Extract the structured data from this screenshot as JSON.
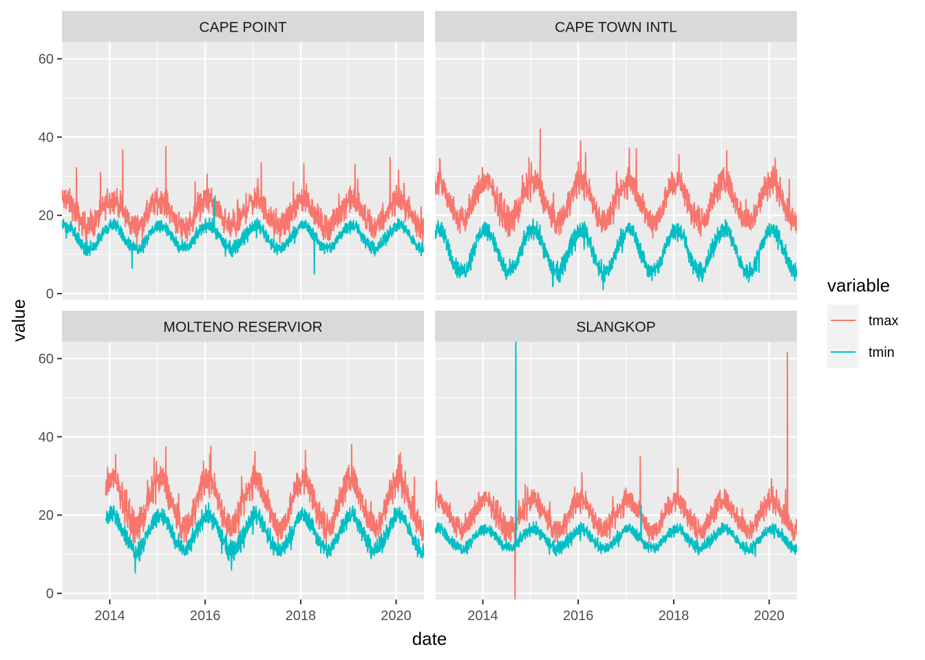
{
  "chart_data": {
    "type": "line",
    "facet_type": "wrap",
    "xlabel": "date",
    "ylabel": "value",
    "x_range": [
      "2012-12-31",
      "2020-08-01"
    ],
    "x_ticks": [
      "2014",
      "2016",
      "2018",
      "2020"
    ],
    "ylim": [
      0,
      64
    ],
    "y_ticks": [
      0,
      20,
      40,
      60
    ],
    "grid": true,
    "legend": {
      "title": "variable",
      "position": "right",
      "entries": [
        {
          "name": "tmax",
          "color": "#F8766D"
        },
        {
          "name": "tmin",
          "color": "#00BFC4"
        }
      ]
    },
    "panels": [
      {
        "title": "CAPE POINT",
        "date_range": [
          "2013-01-01",
          "2020-07-31"
        ],
        "series": [
          {
            "name": "tmax",
            "mean": 20.5,
            "seasonal_amplitude": 3.5,
            "noise": 2.8,
            "base": 0,
            "spikes": [
              {
                "date": "2014-04-10",
                "value": 36.8
              },
              {
                "date": "2015-03-05",
                "value": 37.6
              },
              {
                "date": "2013-04-20",
                "value": 32.2
              },
              {
                "date": "2017-03-05",
                "value": 33.5
              },
              {
                "date": "2018-01-25",
                "value": 33.2
              },
              {
                "date": "2019-02-20",
                "value": 33.0
              },
              {
                "date": "2019-11-15",
                "value": 34.8
              },
              {
                "date": "2016-01-15",
                "value": 30.5
              }
            ]
          },
          {
            "name": "tmin",
            "mean": 14.5,
            "seasonal_amplitude": 3.0,
            "noise": 1.4,
            "base": 0,
            "spikes": [
              {
                "date": "2016-03-10",
                "value": 24.5
              },
              {
                "date": "2018-04-15",
                "value": 5.0
              },
              {
                "date": "2014-06-20",
                "value": 6.5
              }
            ]
          }
        ]
      },
      {
        "title": "CAPE TOWN INTL",
        "date_range": [
          "2013-01-01",
          "2020-07-31"
        ],
        "series": [
          {
            "name": "tmax",
            "mean": 23.5,
            "seasonal_amplitude": 5.0,
            "noise": 3.0,
            "base": 0,
            "spikes": [
              {
                "date": "2015-03-15",
                "value": 42.0
              },
              {
                "date": "2016-01-20",
                "value": 39.0
              },
              {
                "date": "2017-01-25",
                "value": 37.2
              },
              {
                "date": "2017-03-20",
                "value": 37.0
              },
              {
                "date": "2013-02-05",
                "value": 34.5
              },
              {
                "date": "2018-02-10",
                "value": 35.5
              },
              {
                "date": "2019-02-10",
                "value": 36.5
              },
              {
                "date": "2020-02-01",
                "value": 32.5
              }
            ]
          },
          {
            "name": "tmin",
            "mean": 11.0,
            "seasonal_amplitude": 5.5,
            "noise": 2.0,
            "base": 0,
            "spikes": [
              {
                "date": "2016-07-10",
                "value": 1.0
              },
              {
                "date": "2015-06-20",
                "value": 1.8
              }
            ]
          }
        ]
      },
      {
        "title": "MOLTENO RESERVIOR",
        "date_range": [
          "2013-12-01",
          "2020-07-31"
        ],
        "series": [
          {
            "name": "tmax",
            "mean": 23.0,
            "seasonal_amplitude": 6.0,
            "noise": 3.2,
            "base": 0,
            "spikes": [
              {
                "date": "2019-01-25",
                "value": 38.0
              },
              {
                "date": "2015-03-05",
                "value": 37.5
              },
              {
                "date": "2017-01-15",
                "value": 36.2
              },
              {
                "date": "2016-02-05",
                "value": 35.5
              },
              {
                "date": "2014-02-15",
                "value": 35.5
              },
              {
                "date": "2018-02-05",
                "value": 36.5
              },
              {
                "date": "2020-01-20",
                "value": 35.2
              }
            ]
          },
          {
            "name": "tmin",
            "mean": 15.5,
            "seasonal_amplitude": 4.5,
            "noise": 2.0,
            "base": 0,
            "spikes": [
              {
                "date": "2014-07-15",
                "value": 5.2
              },
              {
                "date": "2016-07-20",
                "value": 6.0
              }
            ]
          }
        ]
      },
      {
        "title": "SLANGKOP",
        "date_range": [
          "2013-01-01",
          "2020-07-31"
        ],
        "series": [
          {
            "name": "tmax",
            "mean": 20.0,
            "seasonal_amplitude": 3.8,
            "noise": 2.5,
            "base": 0,
            "spikes": [
              {
                "date": "2014-09-05",
                "value": -3.0
              },
              {
                "date": "2020-05-20",
                "value": 61.5
              },
              {
                "date": "2017-04-20",
                "value": 35.0
              },
              {
                "date": "2018-02-01",
                "value": 32.0
              }
            ]
          },
          {
            "name": "tmin",
            "mean": 14.0,
            "seasonal_amplitude": 2.5,
            "noise": 1.3,
            "base": 0,
            "spikes": [
              {
                "date": "2014-09-10",
                "value": 65.0
              },
              {
                "date": "2017-04-25",
                "value": 22.5
              }
            ]
          }
        ]
      }
    ]
  }
}
